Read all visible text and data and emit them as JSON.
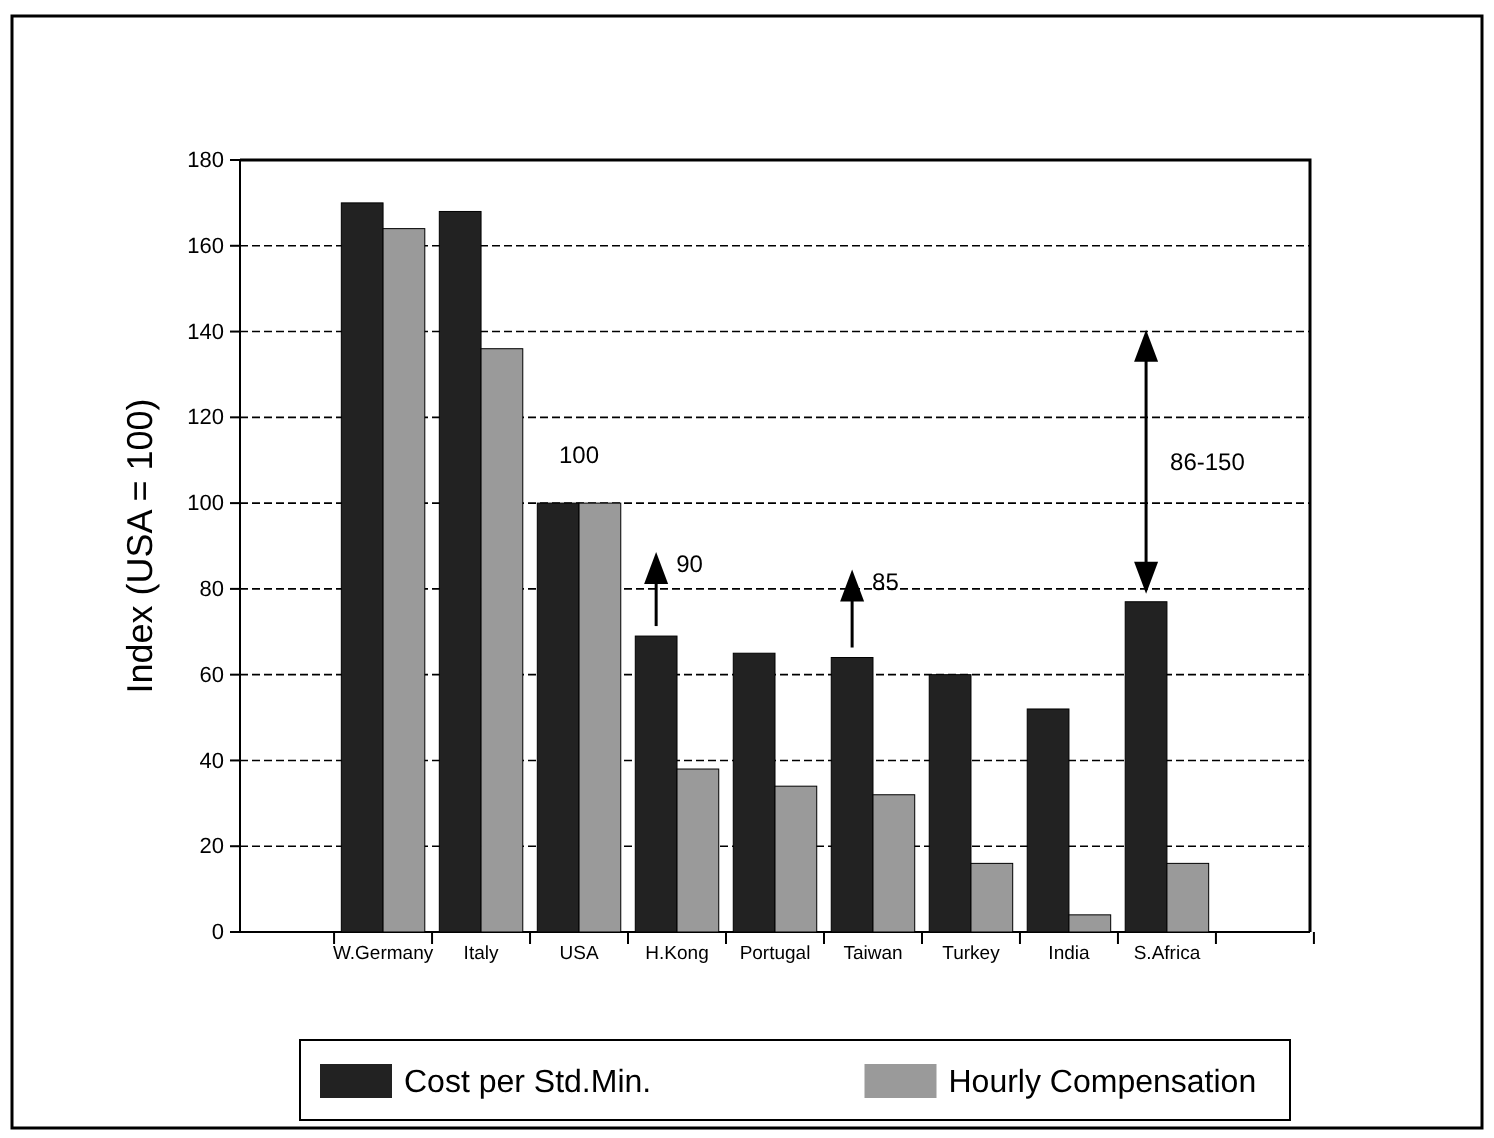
{
  "chart_data": {
    "type": "bar",
    "ylabel": "Index (USA = 100)",
    "categories": [
      null,
      "W.Germany",
      "Italy",
      "USA",
      "H.Kong",
      "Portugal",
      "Taiwan",
      "Turkey",
      "India",
      "S.Africa",
      null
    ],
    "series": [
      {
        "name": "Cost per Std.Min.",
        "color": "#222222",
        "values": [
          null,
          170,
          168,
          100,
          69,
          65,
          64,
          60,
          52,
          77,
          null
        ]
      },
      {
        "name": "Hourly Compensation",
        "color": "#9a9a9a",
        "values": [
          null,
          164,
          136,
          100,
          38,
          34,
          32,
          16,
          4,
          16,
          null
        ]
      }
    ],
    "ylim": [
      0,
      180
    ],
    "yticks": [
      0,
      20,
      40,
      60,
      80,
      100,
      120,
      140,
      160,
      180
    ],
    "grid": "y",
    "legend": "bottom",
    "annotations": [
      "100",
      "90",
      "85",
      "86-150"
    ]
  }
}
